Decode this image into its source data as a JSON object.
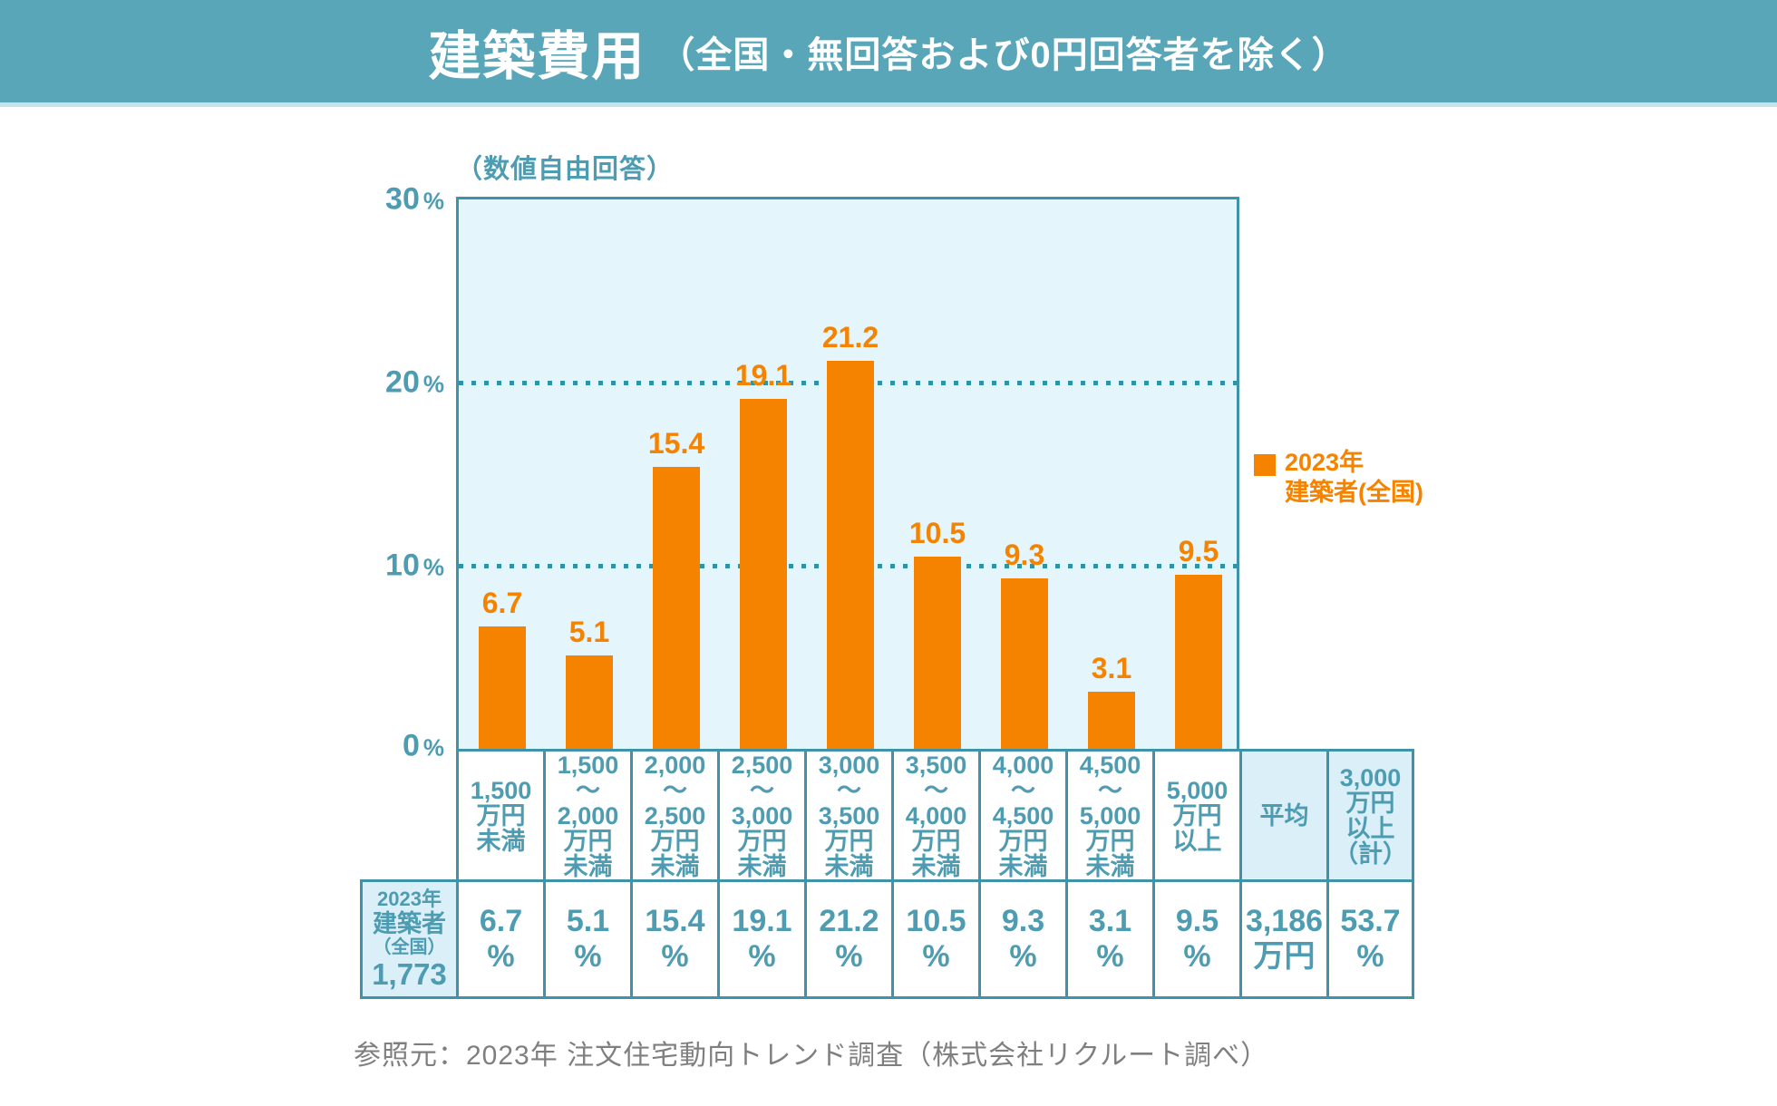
{
  "title": {
    "main": "建築費用",
    "sub": "（全国・無回答および0円回答者を除く）"
  },
  "chart": {
    "subtitle": "（数値自由回答）",
    "y_unit": "%",
    "yticks": [
      "30",
      "20",
      "10",
      "0"
    ],
    "legend_label": "2023年\n建築者(全国)"
  },
  "chart_data": {
    "type": "bar",
    "title": "建築費用（全国・無回答および0円回答者を除く）",
    "subtitle": "（数値自由回答）",
    "categories": [
      "1,500万円未満",
      "1,500〜2,000万円未満",
      "2,000〜2,500万円未満",
      "2,500〜3,000万円未満",
      "3,000〜3,500万円未満",
      "3,500〜4,000万円未満",
      "4,000〜4,500万円未満",
      "4,500〜5,000万円未満",
      "5,000万円以上"
    ],
    "series": [
      {
        "name": "2023年 建築者(全国)",
        "values": [
          6.7,
          5.1,
          15.4,
          19.1,
          21.2,
          10.5,
          9.3,
          3.1,
          9.5
        ]
      }
    ],
    "ylabel": "%",
    "ylim": [
      0,
      30
    ],
    "ytick_values": [
      0,
      10,
      20,
      30
    ],
    "grid": "horizontal dotted at 10 and 20",
    "legend_position": "right",
    "summary": {
      "average": "3,186万円",
      "over_3000_total": "53.7%",
      "sample_size": "1,773"
    }
  },
  "table": {
    "headers": [
      "1,500\n万円\n未満",
      "1,500\n〜\n2,000\n万円\n未満",
      "2,000\n〜\n2,500\n万円\n未満",
      "2,500\n〜\n3,000\n万円\n未満",
      "3,000\n〜\n3,500\n万円\n未満",
      "3,500\n〜\n4,000\n万円\n未満",
      "4,000\n〜\n4,500\n万円\n未満",
      "4,500\n〜\n5,000\n万円\n未満",
      "5,000\n万円\n以上",
      "平均",
      "3,000\n万円\n以上\n（計）"
    ],
    "row_header": {
      "line1": "2023年",
      "line2": "建築者",
      "line3": "（全国）",
      "line4": "1,773"
    },
    "values": [
      "6.7\n%",
      "5.1\n%",
      "15.4\n%",
      "19.1\n%",
      "21.2\n%",
      "10.5\n%",
      "9.3\n%",
      "3.1\n%",
      "9.5\n%",
      "3,186\n万円",
      "53.7\n%"
    ]
  },
  "footer": {
    "source": "参照元：2023年 注文住宅動向トレンド調査（株式会社リクルート調べ）"
  },
  "colors": {
    "accent_orange": "#f58300",
    "teal_border": "#3f93a8",
    "teal_text": "#4e9cb2",
    "title_bar_bg": "#58a6b8",
    "plot_bg": "#e4f5fb",
    "cell_blue_bg": "#daeff8",
    "footer_gray": "#7f7f7f"
  }
}
